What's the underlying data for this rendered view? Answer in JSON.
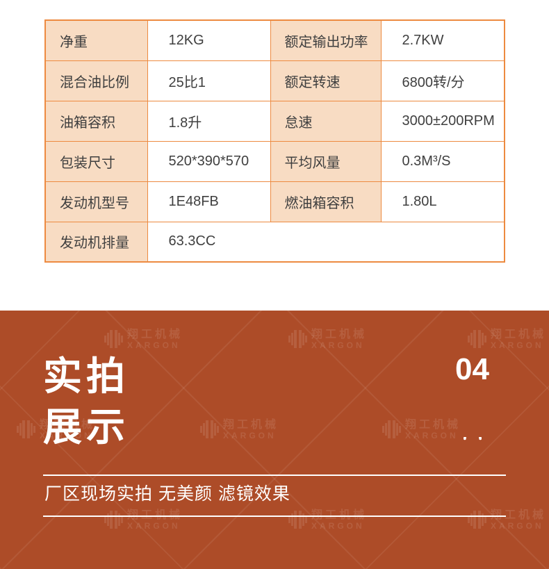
{
  "colors": {
    "table_border": "#ed8a40",
    "label_cell_bg": "#f8dcc3",
    "table_text": "#3f3f3f",
    "section_bg": "#ad4c28",
    "section_text": "#ffffff"
  },
  "specs": {
    "rows": [
      [
        "净重",
        "12KG",
        "额定输出功率",
        "2.7KW"
      ],
      [
        "混合油比例",
        "25比1",
        "额定转速",
        "6800转/分"
      ],
      [
        "油箱容积",
        "1.8升",
        "怠速",
        "3000±200RPM"
      ],
      [
        "包装尺寸",
        "520*390*570",
        "平均风量",
        "0.3M³/S"
      ],
      [
        "发动机型号",
        "1E48FB",
        "燃油箱容积",
        "1.80L"
      ],
      [
        "发动机排量",
        "63.3CC"
      ]
    ]
  },
  "section": {
    "title_line1": "实拍",
    "title_line2": "展示",
    "index": "04",
    "subtitle": "厂区现场实拍 无美颜 滤镜效果",
    "watermark": {
      "cn": "翔工机械",
      "en": "XARGON"
    }
  }
}
